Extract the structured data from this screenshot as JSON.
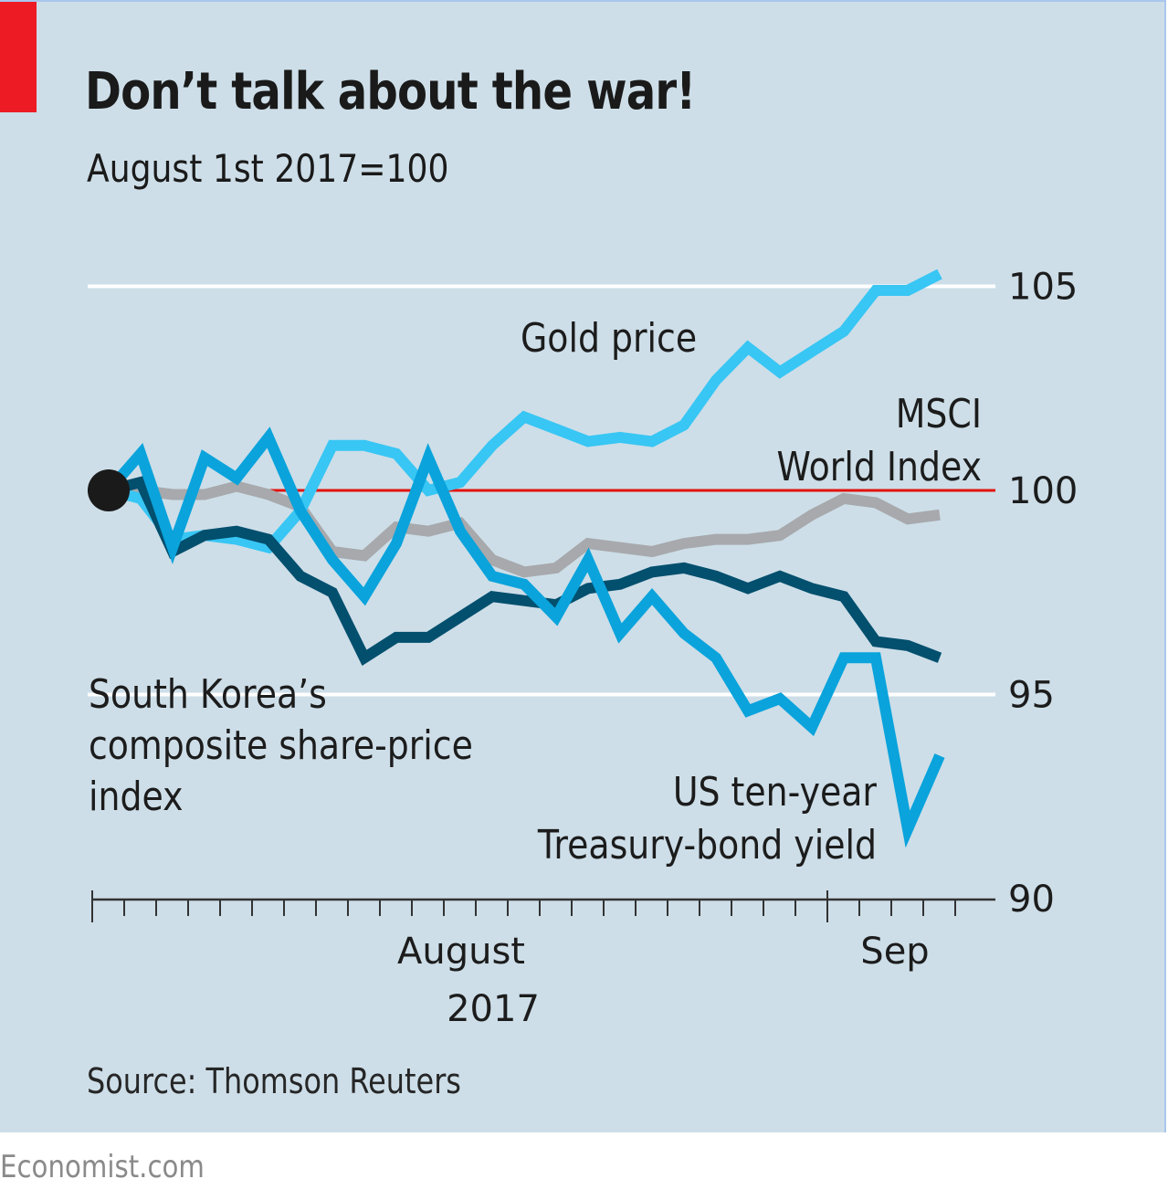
{
  "chart_data": {
    "type": "line",
    "title": "Don’t talk about the war!",
    "subtitle": "August 1st 2017=100",
    "xlabel": "",
    "ylabel": "",
    "ylim": [
      90,
      106
    ],
    "yticks": [
      90,
      95,
      100,
      105
    ],
    "ytick_labels": [
      "90",
      "95",
      "100",
      "105"
    ],
    "y_axis_side": "right",
    "x_tick_count_days": 28,
    "x_month_ticks": [
      {
        "index": 0,
        "label": "August"
      },
      {
        "index": 23,
        "label": "Sep"
      }
    ],
    "x_year_label": "2017",
    "reference_line": {
      "value": 100,
      "color": "#e3120b"
    },
    "grid": true,
    "series": [
      {
        "name": "Gold price",
        "label_lines": [
          "Gold price"
        ],
        "color": "#38c6f4",
        "values": [
          100,
          99.8,
          98.8,
          98.9,
          98.8,
          98.6,
          99.5,
          101.1,
          101.1,
          100.9,
          100.0,
          100.2,
          101.1,
          101.8,
          101.5,
          101.2,
          101.3,
          101.2,
          101.6,
          102.7,
          103.5,
          102.9,
          103.4,
          103.9,
          104.9,
          104.9,
          105.3
        ]
      },
      {
        "name": "US ten-year Treasury-bond yield",
        "label_lines": [
          "US ten-year",
          "Treasury-bond yield"
        ],
        "color": "#0aa3dc",
        "values": [
          100,
          100.9,
          98.6,
          100.8,
          100.3,
          101.3,
          99.5,
          98.3,
          97.4,
          98.7,
          100.8,
          99.0,
          97.9,
          97.7,
          96.9,
          98.3,
          96.5,
          97.4,
          96.5,
          95.9,
          94.6,
          94.9,
          94.2,
          95.9,
          95.9,
          91.7,
          93.5
        ]
      },
      {
        "name": "South Korea’s composite share-price index",
        "label_lines": [
          "South Korea’s",
          "composite share-price",
          "index"
        ],
        "color": "#024f6e",
        "values": [
          100,
          100.2,
          98.5,
          98.9,
          99.0,
          98.8,
          97.9,
          97.5,
          95.9,
          96.4,
          96.4,
          96.9,
          97.4,
          97.3,
          97.2,
          97.6,
          97.7,
          98.0,
          98.1,
          97.9,
          97.6,
          97.9,
          97.6,
          97.4,
          96.3,
          96.2,
          95.9
        ]
      },
      {
        "name": "MSCI World Index",
        "label_lines": [
          "MSCI",
          "World Index"
        ],
        "color": "#a7a9ac",
        "values": [
          100,
          100,
          99.9,
          99.9,
          100.1,
          99.9,
          99.6,
          98.5,
          98.4,
          99.1,
          99.0,
          99.2,
          98.3,
          98.0,
          98.1,
          98.7,
          98.6,
          98.5,
          98.7,
          98.8,
          98.8,
          98.9,
          99.4,
          99.8,
          99.7,
          99.3,
          99.4
        ]
      }
    ],
    "source": "Source: Thomson Reuters"
  },
  "footer": {
    "brand": "Economist.com"
  },
  "colors": {
    "background": "#cddee8",
    "accent_red": "#ed1c24",
    "gridline": "#ffffff",
    "start_marker": "#1a1a1a"
  }
}
